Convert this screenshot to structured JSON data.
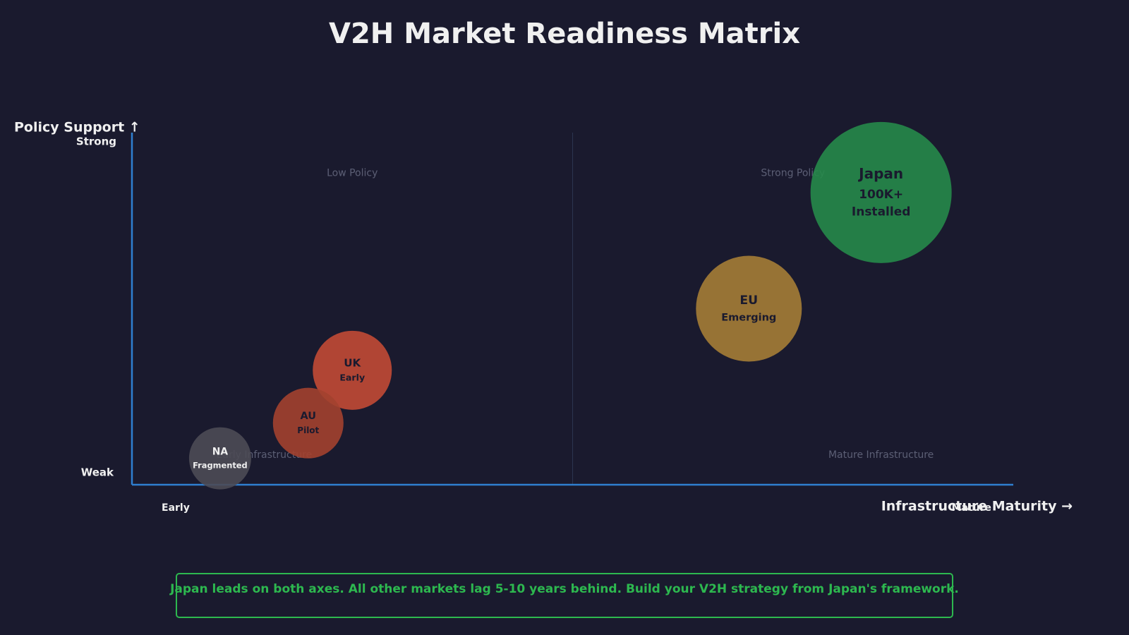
{
  "chart_data": {
    "type": "bubble",
    "title": "V2H Market Readiness Matrix",
    "x_label": "Infrastructure Maturity →",
    "y_label": "Policy Support ↑",
    "x_end_labels": [
      "Early",
      "Mature"
    ],
    "y_end_labels": [
      "Weak",
      "Strong"
    ],
    "quadrant_labels": [
      "Low Policy",
      "Strong Policy",
      "Early Infrastructure",
      "Mature Infrastructure"
    ],
    "xlim": [
      0,
      10
    ],
    "ylim": [
      0,
      10
    ],
    "points": [
      {
        "name": "Japan",
        "detail": [
          "100K+",
          "Installed"
        ],
        "x": 8.5,
        "y": 8.3,
        "size": 10,
        "color": "#26894a"
      },
      {
        "name": "EU",
        "detail": [
          "Emerging"
        ],
        "x": 7.0,
        "y": 5.0,
        "size": 7.5,
        "color": "#a57d36"
      },
      {
        "name": "UK",
        "detail": [
          "Early"
        ],
        "x": 2.5,
        "y": 3.25,
        "size": 5.6,
        "color": "#c24a35"
      },
      {
        "name": "AU",
        "detail": [
          "Pilot"
        ],
        "x": 2.0,
        "y": 1.75,
        "size": 5,
        "color": "#a3412f"
      },
      {
        "name": "NA",
        "detail": [
          "Fragmented"
        ],
        "x": 1.0,
        "y": 0.75,
        "size": 4.4,
        "color": "#4c4b55"
      }
    ],
    "callout": "Japan leads on both axes. All other markets lag 5-10 years behind. Build your V2H strategy from Japan's framework."
  }
}
